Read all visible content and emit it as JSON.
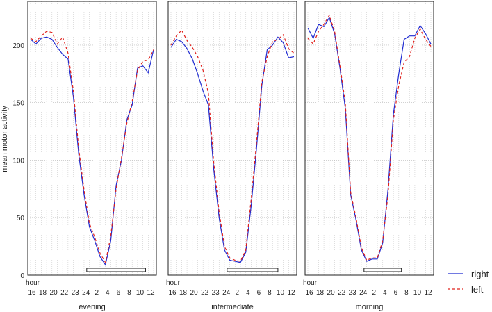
{
  "chart_data": {
    "type": "line",
    "ylabel": "mean motor activity",
    "ylim": [
      0,
      238
    ],
    "yticks": [
      0,
      50,
      100,
      150,
      200
    ],
    "x_prefix_label": "hour",
    "xtick_labels": [
      "16",
      "18",
      "20",
      "22",
      "23",
      "24",
      "2",
      "4",
      "6",
      "8",
      "10",
      "12"
    ],
    "grid": true,
    "legend": {
      "position": "right-bottom",
      "entries": [
        {
          "name": "right",
          "color": "#1f2bd1",
          "style": "solid"
        },
        {
          "name": "left",
          "color": "#e0201b",
          "style": "dashed"
        }
      ]
    },
    "panels": [
      {
        "xlabel": "evening",
        "bar_range": [
          10.5,
          21.5
        ],
        "series": [
          {
            "name": "right",
            "color": "#1f2bd1",
            "style": "solid",
            "values": [
              205,
              201,
              206,
              207,
              205,
              198,
              192,
              188,
              155,
              105,
              70,
              42,
              30,
              16,
              9,
              30,
              78,
              100,
              135,
              148,
              180,
              182,
              176,
              196
            ]
          },
          {
            "name": "left",
            "color": "#e0201b",
            "style": "dashed",
            "values": [
              206,
              203,
              208,
              212,
              211,
              201,
              207,
              193,
              160,
              110,
              74,
              45,
              33,
              19,
              11,
              34,
              75,
              102,
              132,
              151,
              178,
              186,
              187,
              196
            ]
          }
        ]
      },
      {
        "xlabel": "intermediate",
        "bar_range": [
          10.5,
          20
        ],
        "series": [
          {
            "name": "right",
            "color": "#1f2bd1",
            "style": "solid",
            "values": [
              198,
              205,
              203,
              197,
              188,
              175,
              160,
              148,
              92,
              50,
              22,
              13,
              12,
              11,
              20,
              60,
              110,
              165,
              196,
              200,
              207,
              202,
              189,
              190
            ]
          },
          {
            "name": "left",
            "color": "#e0201b",
            "style": "dashed",
            "values": [
              200,
              208,
              213,
              204,
              198,
              190,
              178,
              158,
              98,
              55,
              25,
              15,
              13,
              12,
              22,
              66,
              115,
              168,
              190,
              203,
              205,
              209,
              197,
              193
            ]
          }
        ]
      },
      {
        "xlabel": "morning",
        "bar_range": [
          10.5,
          17.5
        ],
        "series": [
          {
            "name": "right",
            "color": "#1f2bd1",
            "style": "solid",
            "values": [
              215,
              206,
              218,
              216,
              224,
              210,
              180,
              145,
              70,
              48,
              22,
              12,
              14,
              14,
              28,
              75,
              140,
              175,
              205,
              208,
              208,
              217,
              210,
              201
            ]
          },
          {
            "name": "left",
            "color": "#e0201b",
            "style": "dashed",
            "values": [
              206,
              201,
              212,
              218,
              226,
              212,
              182,
              150,
              72,
              50,
              24,
              13,
              15,
              15,
              30,
              70,
              135,
              165,
              185,
              190,
              206,
              214,
              205,
              199
            ]
          }
        ]
      }
    ]
  }
}
